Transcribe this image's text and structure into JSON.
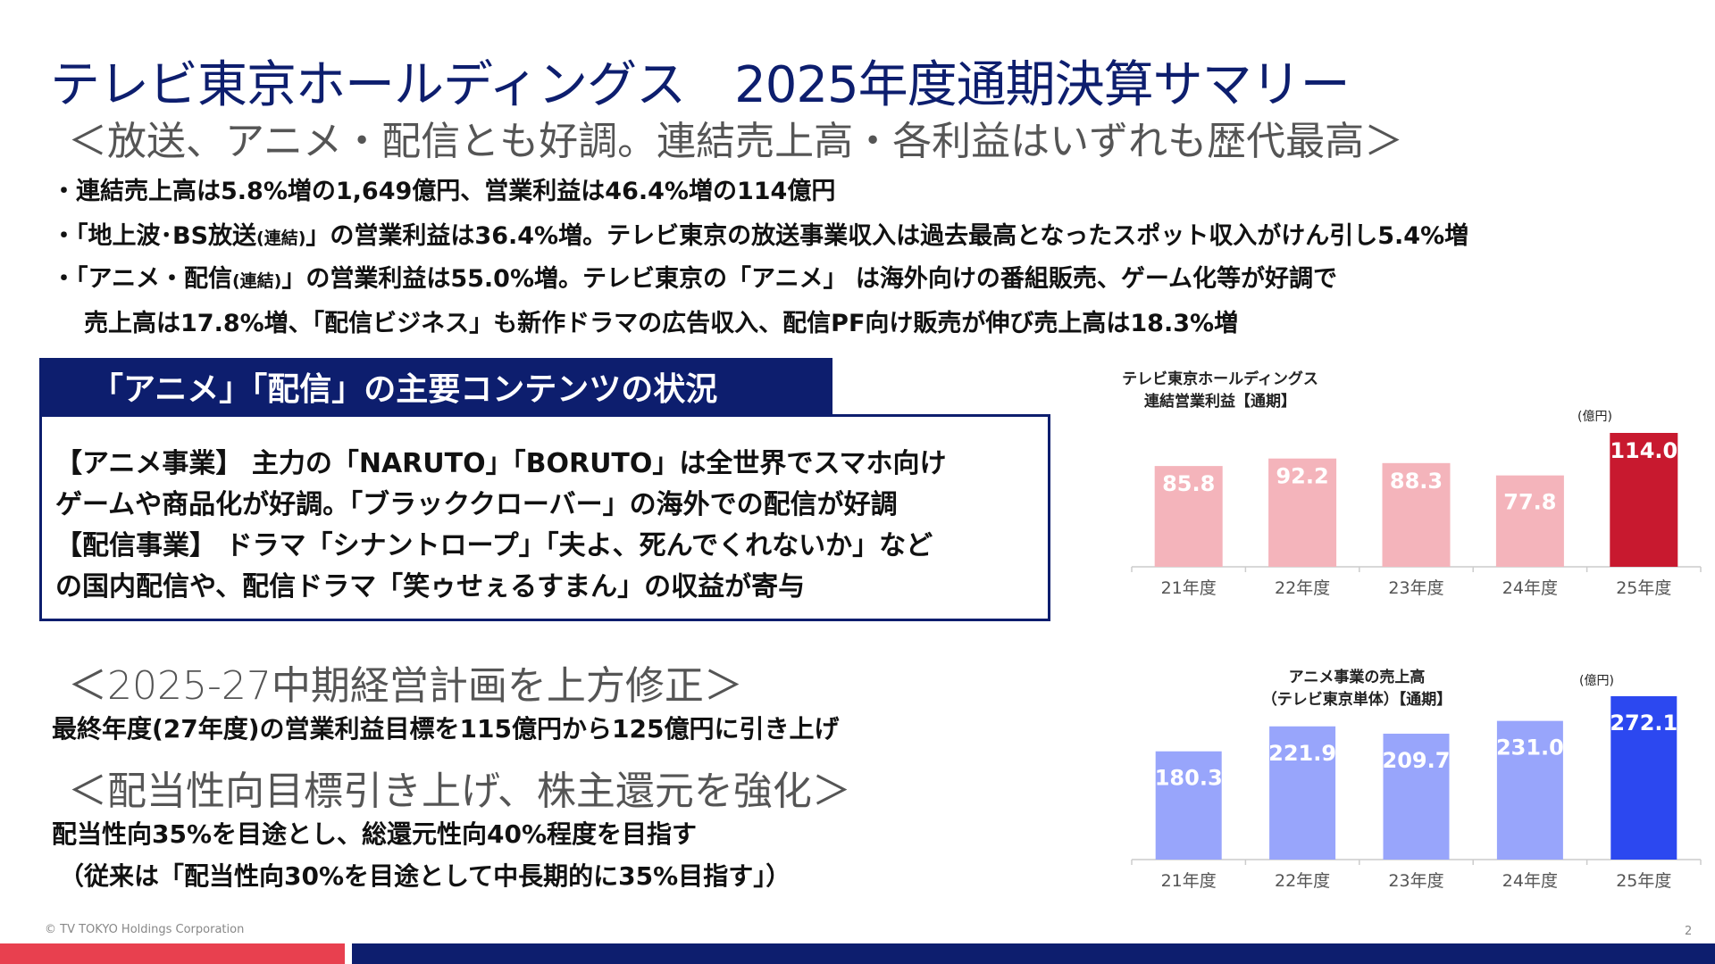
{
  "title": "テレビ東京ホールディングス　2025年度通期決算サマリー",
  "summary": {
    "headline": "＜放送、アニメ・配信とも好調。連結売上高・各利益はいずれも歴代最高＞",
    "bullet1": "・連結売上高は5.8%増の1,649億円、営業利益は46.4%増の114億円",
    "bullet2_a": "・「地上波･BS放送",
    "bullet2_small": "(連結)",
    "bullet2_b": "」の営業利益は36.4%増。テレビ東京の放送事業収入は過去最高となったスポット収入がけん引し5.4%増",
    "bullet3_a": "・「アニメ・配信",
    "bullet3_small": "(連結)",
    "bullet3_b": "」の営業利益は55.0%増。テレビ東京の「アニメ」 は海外向けの番組販売、ゲーム化等が好調で",
    "bullet3_cont": "売上高は17.8%増、「配信ビジネス」も新作ドラマの広告収入、配信PF向け販売が伸び売上高は18.3%増"
  },
  "panel": {
    "tab": "「アニメ」「配信」の主要コンテンツの状況",
    "line1": "【アニメ事業】 主力の「NARUTO」「BORUTO」は全世界でスマホ向け",
    "line2": "ゲームや商品化が好調。「ブラッククローバー」の海外での配信が好調",
    "line3": "【配信事業】 ドラマ「シナントロープ」「夫よ、死んでくれないか」など",
    "line4": "の国内配信や、配信ドラマ「笑ゥせぇるすまん」の収益が寄与"
  },
  "plan": {
    "headline": "＜2025-27中期経営計画を上方修正＞",
    "text": "最終年度(27年度)の営業利益目標を115億円から125億円に引き上げ"
  },
  "dividend": {
    "headline": "＜配当性向目標引き上げ、株主還元を強化＞",
    "text1": "配当性向35%を目途とし、総還元性向40%程度を目指す",
    "text2": "（従来は「配当性向30%を目途として中長期的に35%目指す」）"
  },
  "footer": {
    "copyright": "© TV TOKYO Holdings Corporation",
    "page": "2"
  },
  "chart_data": [
    {
      "type": "bar",
      "title": "テレビ東京ホールディングス\n連結営業利益【通期】",
      "title_line1": "テレビ東京ホールディングス",
      "title_line2": "連結営業利益【通期】",
      "unit": "(億円)",
      "categories": [
        "21年度",
        "22年度",
        "23年度",
        "24年度",
        "25年度"
      ],
      "values": [
        85.8,
        92.2,
        88.3,
        77.8,
        114.0
      ],
      "labels": [
        "85.8",
        "92.2",
        "88.3",
        "77.8",
        "114.0"
      ],
      "ylim": [
        0,
        114.0
      ],
      "colors": [
        "#f4b4bb",
        "#f4b4bb",
        "#f4b4bb",
        "#f4b4bb",
        "#c8192f"
      ]
    },
    {
      "type": "bar",
      "title": "アニメ事業の売上高\n（テレビ東京単体）【通期】",
      "title_line1": "アニメ事業の売上高",
      "title_line2": "（テレビ東京単体）【通期】",
      "unit": "(億円)",
      "categories": [
        "21年度",
        "22年度",
        "23年度",
        "24年度",
        "25年度"
      ],
      "values": [
        180.3,
        221.9,
        209.7,
        231.0,
        272.1
      ],
      "labels": [
        "180.3",
        "221.9",
        "209.7",
        "231.0",
        "272.1"
      ],
      "ylim": [
        0,
        272.1
      ],
      "colors": [
        "#98a5fb",
        "#98a5fb",
        "#98a5fb",
        "#98a5fb",
        "#2c48f0"
      ]
    }
  ]
}
